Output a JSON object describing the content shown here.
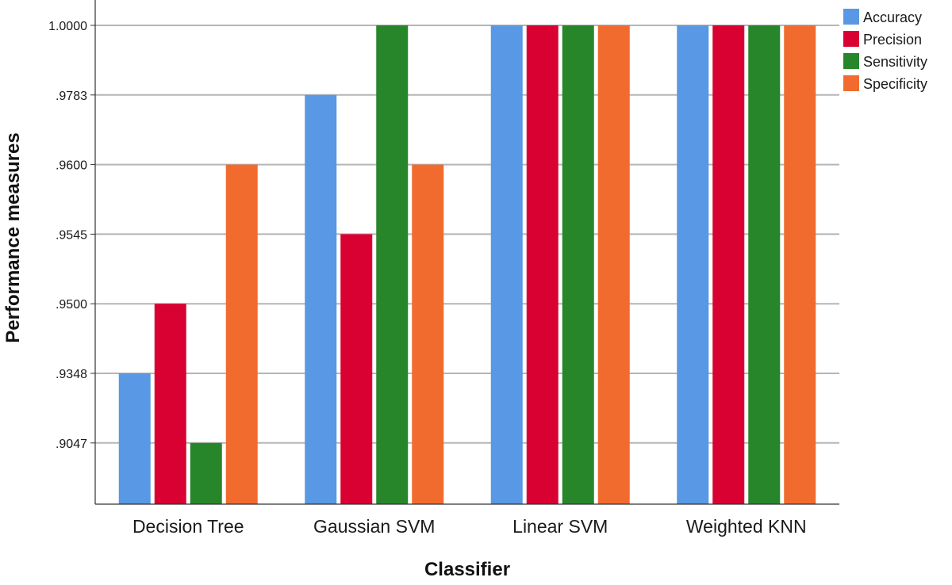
{
  "chart_data": {
    "type": "bar",
    "title": "",
    "xlabel": "Classifier",
    "ylabel": "Performance measures",
    "categories": [
      "Decision Tree",
      "Gaussian SVM",
      "Linear SVM",
      "Weighted KNN"
    ],
    "y_ticks": [
      {
        "label": "1.0000",
        "rank": 6
      },
      {
        "label": ".9783",
        "rank": 5
      },
      {
        "label": ".9600",
        "rank": 4
      },
      {
        "label": ".9545",
        "rank": 3
      },
      {
        "label": ".9500",
        "rank": 2
      },
      {
        "label": ".9348",
        "rank": 1
      },
      {
        "label": ".9047",
        "rank": 0
      }
    ],
    "y_scale": "categorical-ordinal",
    "grid": "horizontal",
    "legend_position": "top-right",
    "series": [
      {
        "name": "Accuracy",
        "color": "#5898e4",
        "values": [
          0.9348,
          0.9783,
          1.0,
          1.0
        ]
      },
      {
        "name": "Precision",
        "color": "#d90032",
        "values": [
          0.95,
          0.9545,
          1.0,
          1.0
        ]
      },
      {
        "name": "Sensitivity",
        "color": "#27862a",
        "values": [
          0.9047,
          1.0,
          1.0,
          1.0
        ]
      },
      {
        "name": "Specificity",
        "color": "#f26b2e",
        "values": [
          0.96,
          0.96,
          1.0,
          1.0
        ]
      }
    ]
  }
}
